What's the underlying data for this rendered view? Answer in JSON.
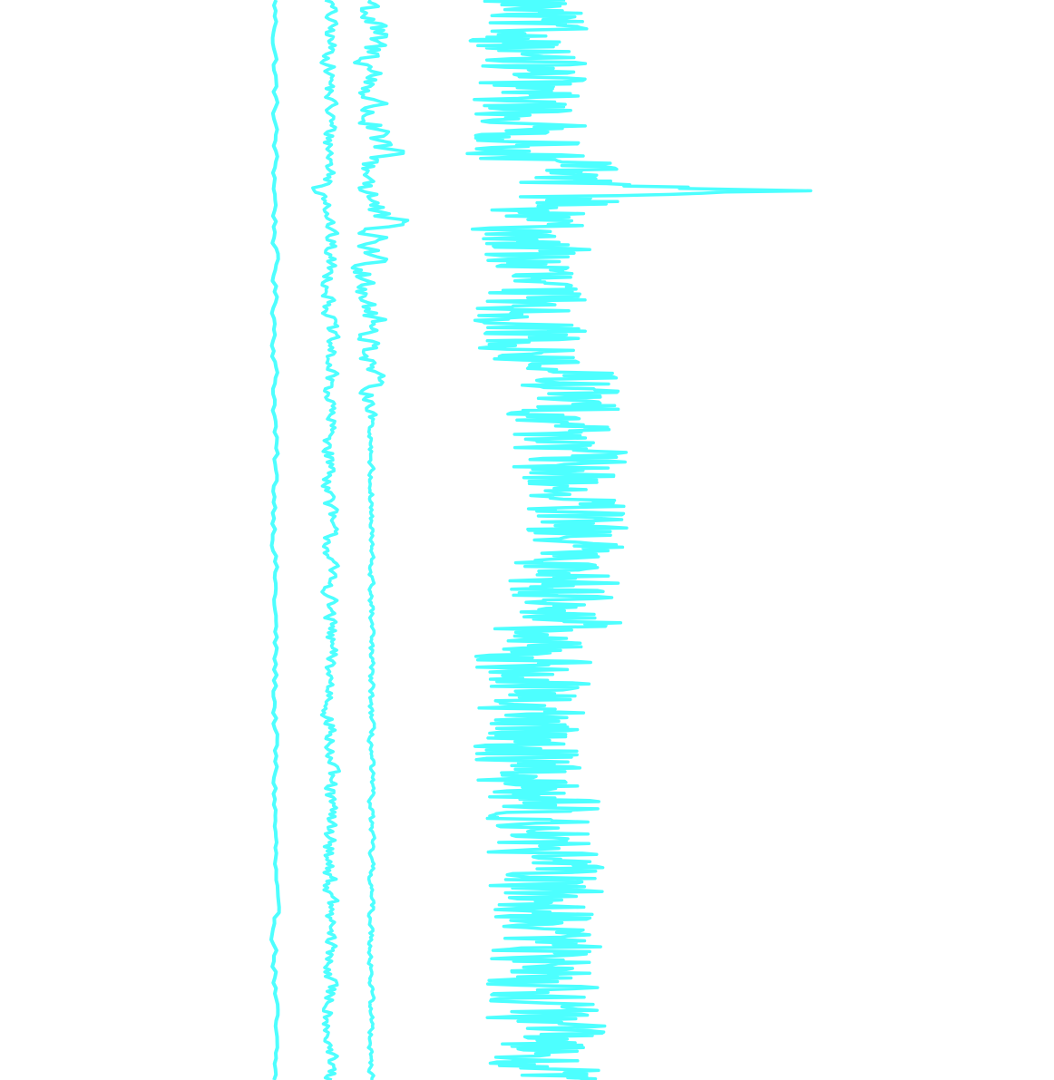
{
  "chart_data": {
    "type": "line",
    "orientation": "vertical-traces",
    "title": "",
    "xlabel": "",
    "ylabel": "",
    "axes_visible": false,
    "grid": false,
    "legend": "none",
    "color": "#4dffff",
    "series": [
      {
        "id": "trace-1",
        "baseline": 0.0,
        "wobble": 0.5,
        "values": []
      },
      {
        "id": "trace-2",
        "baseline": 6.0,
        "wobble": 1.2,
        "spikes": [
          {
            "at": 0.175,
            "amp": -2.2
          }
        ]
      },
      {
        "id": "trace-3",
        "baseline": 10.5,
        "wobble": 3.0,
        "envelope": [
          [
            0.0,
            1.0
          ],
          [
            0.25,
            1.0
          ],
          [
            0.35,
            0.6
          ],
          [
            0.4,
            0.15
          ],
          [
            1.0,
            0.15
          ]
        ],
        "spikes": [
          {
            "at": 0.14,
            "amp": 2.5
          },
          {
            "at": 0.205,
            "amp": 2.5
          }
        ]
      },
      {
        "id": "trace-4",
        "baseline": 28.5,
        "wobble": 7.0,
        "envelope": [
          [
            0.0,
            1.0
          ],
          [
            1.0,
            1.0
          ]
        ],
        "segments": [
          {
            "from": 0.0,
            "to": 0.15,
            "offset": -1.0
          },
          {
            "from": 0.15,
            "to": 0.19,
            "offset": 3.5
          },
          {
            "from": 0.19,
            "to": 0.34,
            "offset": -0.5
          },
          {
            "from": 0.34,
            "to": 0.58,
            "offset": 3.5
          },
          {
            "from": 0.58,
            "to": 0.74,
            "offset": -0.5
          },
          {
            "from": 0.74,
            "to": 1.0,
            "offset": 1.0
          }
        ],
        "spikes": [
          {
            "at": 0.176,
            "amp": 24.0
          }
        ]
      }
    ],
    "xlim": [
      -30,
      85
    ],
    "ylim": [
      0,
      1
    ]
  }
}
